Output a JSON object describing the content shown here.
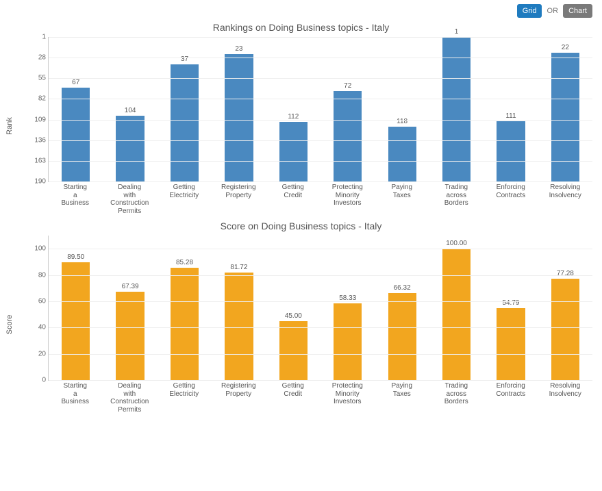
{
  "toolbar": {
    "grid_label": "Grid",
    "or_label": "OR",
    "chart_label": "Chart"
  },
  "colors": {
    "rank_bar": "#4a89c0",
    "score_bar": "#f2a61f",
    "grid_line": "#eeeeee",
    "axis": "#cccccc",
    "text": "#555555",
    "toolbar_grid_bg": "#1f7bbf",
    "toolbar_chart_bg": "#7a7a7a",
    "background": "#ffffff"
  },
  "categories": [
    "Starting\na\nBusiness",
    "Dealing\nwith\nConstruction\nPermits",
    "Getting\nElectricity",
    "Registering\nProperty",
    "Getting\nCredit",
    "Protecting\nMinority\nInvestors",
    "Paying\nTaxes",
    "Trading\nacross\nBorders",
    "Enforcing\nContracts",
    "Resolving\nInsolvency"
  ],
  "rank_chart": {
    "type": "bar",
    "title": "Rankings on Doing Business topics - Italy",
    "y_label": "Rank",
    "y_min": 190,
    "y_max": 1,
    "y_ticks": [
      1,
      28,
      55,
      82,
      109,
      136,
      163,
      190
    ],
    "values": [
      67,
      104,
      37,
      23,
      112,
      72,
      118,
      1,
      111,
      22
    ],
    "bar_color": "#4a89c0",
    "bar_width_ratio": 0.52,
    "label_fontsize": 10,
    "title_fontsize": 14,
    "grid": true
  },
  "score_chart": {
    "type": "bar",
    "title": "Score on Doing Business topics - Italy",
    "y_label": "Score",
    "y_min": 0,
    "y_max": 110,
    "y_ticks": [
      0,
      20,
      40,
      60,
      80,
      100
    ],
    "values": [
      89.5,
      67.39,
      85.28,
      81.72,
      45.0,
      58.33,
      66.32,
      100.0,
      54.79,
      77.28
    ],
    "value_labels": [
      "89.50",
      "67.39",
      "85.28",
      "81.72",
      "45.00",
      "58.33",
      "66.32",
      "100.00",
      "54.79",
      "77.28"
    ],
    "bar_color": "#f2a61f",
    "bar_width_ratio": 0.52,
    "label_fontsize": 10,
    "title_fontsize": 14,
    "grid": true
  }
}
